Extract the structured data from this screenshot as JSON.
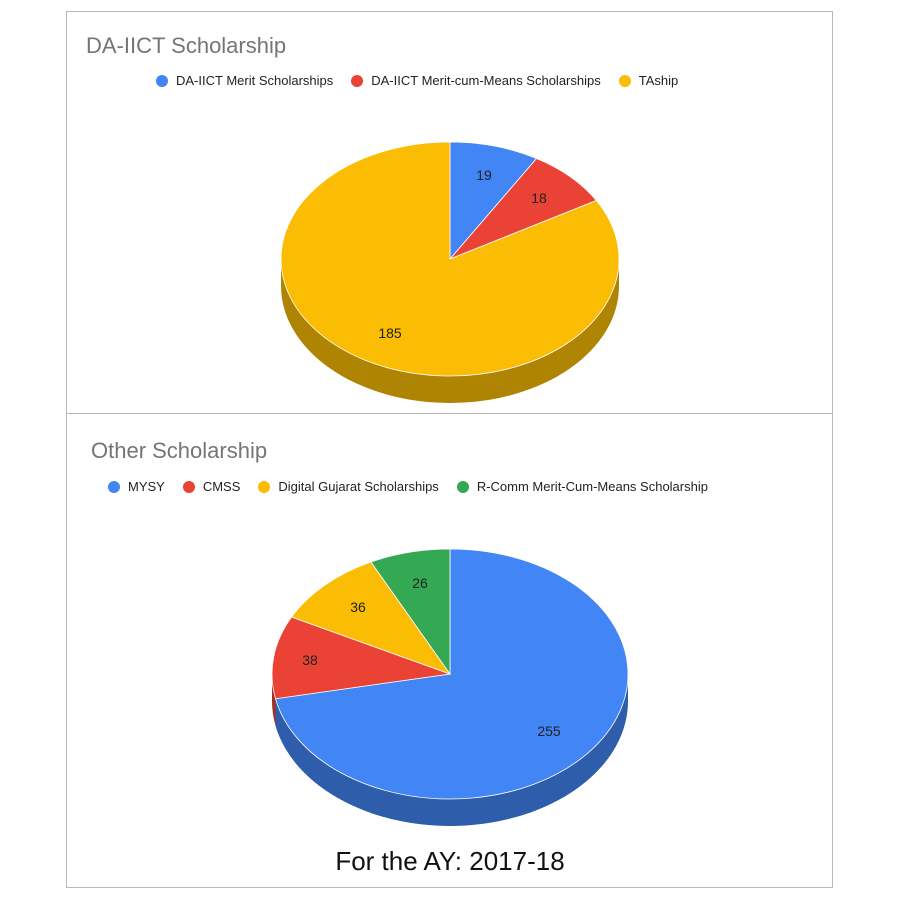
{
  "colors": {
    "blue": "#4285f4",
    "blue_side": "#2f5eae",
    "red": "#ea4335",
    "red_side": "#a52f25",
    "yellow": "#fbbc04",
    "yellow_side": "#b08400",
    "green": "#34a853",
    "green_side": "#24763a"
  },
  "caption": "For the AY: 2017-18",
  "chart_data": [
    {
      "type": "pie",
      "style": "3d",
      "title": "DA-IICT Scholarship",
      "legend_position": "top",
      "categories": [
        "DA-IICT Merit Scholarships",
        "DA-IICT Merit-cum-Means Scholarships",
        "TAship"
      ],
      "values": [
        19,
        18,
        185
      ],
      "data_labels": [
        "19",
        "18",
        "185"
      ],
      "colors": [
        "#4285f4",
        "#ea4335",
        "#fbbc04"
      ]
    },
    {
      "type": "pie",
      "style": "3d",
      "title": "Other Scholarship",
      "legend_position": "top",
      "categories": [
        "MYSY",
        "CMSS",
        "Digital Gujarat Scholarships",
        "R-Comm Merit-Cum-Means Scholarship"
      ],
      "values": [
        255,
        38,
        36,
        26
      ],
      "data_labels": [
        "255",
        "38",
        "36",
        "26"
      ],
      "colors": [
        "#4285f4",
        "#ea4335",
        "#fbbc04",
        "#34a853"
      ]
    }
  ]
}
